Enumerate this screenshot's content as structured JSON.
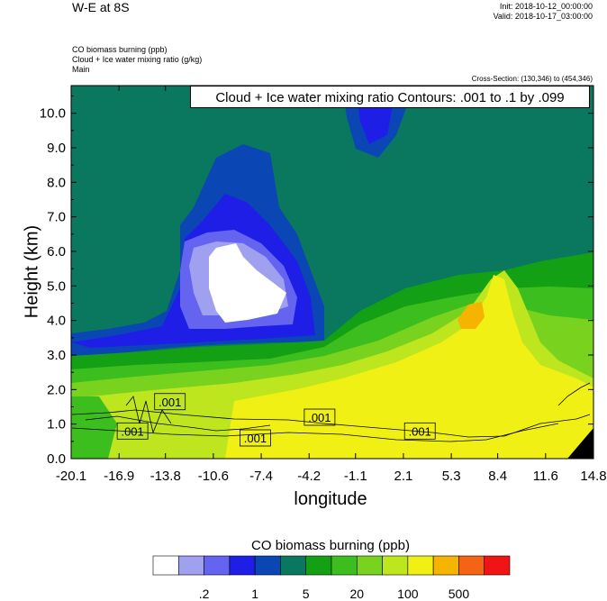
{
  "header": {
    "title": "W-E at 8S",
    "init": "Init: 2018-10-12_00:00:00",
    "valid": "Valid: 2018-10-17_03:00:00",
    "field1": "CO biomass burning   (ppb)",
    "field2": "Cloud + Ice water mixing ratio   (g/kg)",
    "field3": "Main",
    "cross_section": "Cross-Section: (130,346) to (454,346)"
  },
  "contour_info": "Cloud + Ice water mixing ratio Contours: .001 to .1 by .099",
  "chart_data": {
    "type": "heatmap",
    "xlabel": "longitude",
    "ylabel": "Height (km)",
    "xticks": [
      "-20.1",
      "-16.9",
      "-13.8",
      "-10.6",
      "-7.4",
      "-4.2",
      "-1.1",
      "2.1",
      "5.3",
      "8.4",
      "11.6",
      "14.8"
    ],
    "yticks": [
      "0.0",
      "1.0",
      "2.0",
      "3.0",
      "4.0",
      "5.0",
      "6.0",
      "7.0",
      "8.0",
      "9.0",
      "10.0"
    ],
    "xlim": [
      -20.1,
      14.8
    ],
    "ylim": [
      0,
      10.8
    ],
    "contour_labels": [
      {
        "text": ".001",
        "x": -13.5,
        "y": 1.65
      },
      {
        "text": ".001",
        "x": -16.0,
        "y": 0.8
      },
      {
        "text": ".001",
        "x": -7.8,
        "y": 0.6
      },
      {
        "text": ".001",
        "x": -3.5,
        "y": 1.2
      },
      {
        "text": ".001",
        "x": 3.2,
        "y": 0.8
      }
    ],
    "colorbar": {
      "title": "CO biomass burning  (ppb)",
      "colors": [
        "#ffffff",
        "#a0a0f0",
        "#6464f0",
        "#1e1ee6",
        "#0a46b4",
        "#0a785f",
        "#14a014",
        "#3cbe1e",
        "#78d21e",
        "#bee61e",
        "#f0f014",
        "#f5b400",
        "#f56414",
        "#f01414"
      ],
      "labels": [
        ".2",
        "1",
        "5",
        "20",
        "100",
        "500"
      ]
    }
  }
}
